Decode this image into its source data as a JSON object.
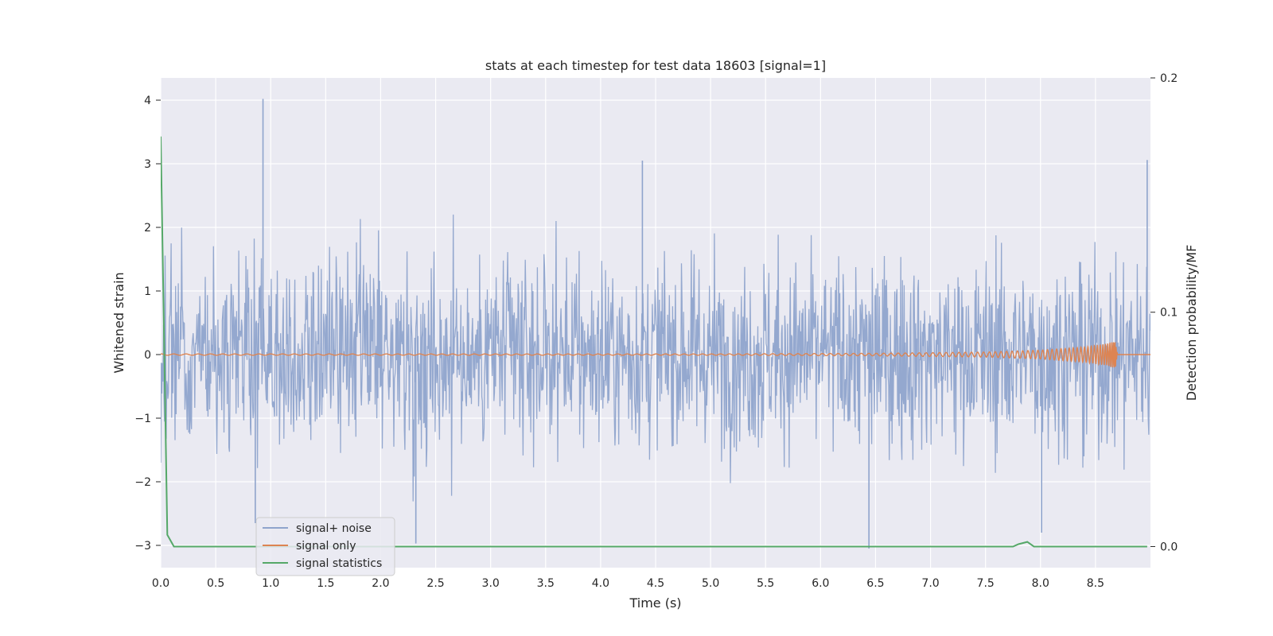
{
  "chart_data": {
    "type": "line",
    "title": "stats at each timestep for test data 18603 [signal=1]",
    "xlabel": "Time (s)",
    "ylabel": "Whitened strain",
    "y2label": "Detection probability/MF",
    "xlim": [
      0,
      9.0
    ],
    "ylim": [
      -3.35,
      4.35
    ],
    "y2lim": [
      -0.009,
      0.2
    ],
    "xticks": [
      "0.0",
      "0.5",
      "1.0",
      "1.5",
      "2.0",
      "2.5",
      "3.0",
      "3.5",
      "4.0",
      "4.5",
      "5.0",
      "5.5",
      "6.0",
      "6.5",
      "7.0",
      "7.5",
      "8.0",
      "8.5"
    ],
    "yticks": [
      "4",
      "3",
      "2",
      "1",
      "0",
      "−1",
      "−2",
      "−3"
    ],
    "y2ticks": [
      "0.2",
      "0.1",
      "0.0"
    ],
    "grid": true,
    "legend_position": "lower-left",
    "colors": {
      "plot_bg": "#eaeaf2",
      "grid": "#ffffff",
      "noise": "#8fa4cc",
      "signal": "#dd8452",
      "stats": "#55a868"
    },
    "series": [
      {
        "name": "signal+ noise",
        "axis": "left",
        "note_peaks": [
          {
            "x": 0.93,
            "y": 4.02
          },
          {
            "x": 4.38,
            "y": 3.05
          },
          {
            "x": 8.97,
            "y": 3.06
          },
          {
            "x": 2.32,
            "y": -2.97
          },
          {
            "x": 6.44,
            "y": -3.05
          },
          {
            "x": 0.86,
            "y": -2.65
          },
          {
            "x": 8.01,
            "y": -2.8
          }
        ],
        "envelope_high": 2.0,
        "envelope_low": -2.0,
        "dense_band": [
          -0.9,
          0.9
        ]
      },
      {
        "name": "signal only",
        "axis": "left",
        "x": [
          0.0,
          5.0,
          6.5,
          7.5,
          8.0,
          8.4,
          8.6,
          8.68,
          8.7,
          9.0
        ],
        "amplitude": [
          0.01,
          0.01,
          0.02,
          0.04,
          0.07,
          0.12,
          0.17,
          0.22,
          0.0,
          0.0
        ]
      },
      {
        "name": "signal statistics",
        "axis": "right",
        "x": [
          0.0,
          0.06,
          0.12,
          7.75,
          7.8,
          7.88,
          7.94,
          8.97
        ],
        "y": [
          0.175,
          0.005,
          0.0,
          0.0,
          0.001,
          0.002,
          0.0,
          0.0
        ]
      }
    ]
  }
}
